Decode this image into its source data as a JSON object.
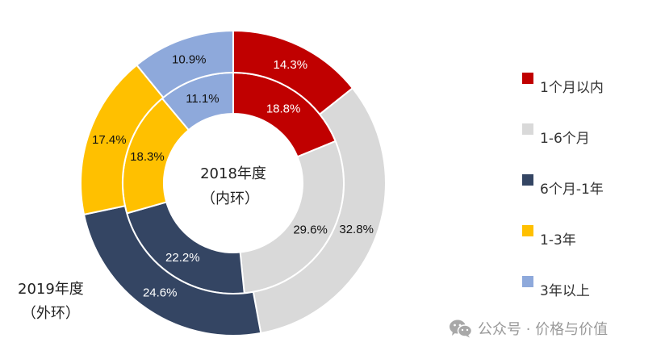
{
  "chart_data": {
    "type": "pie",
    "subtype": "nested-donut",
    "title": "",
    "categories": [
      "1个月以内",
      "1-6个月",
      "6个月-1年",
      "1-3年",
      "3年以上"
    ],
    "colors": [
      "#C00000",
      "#D9D9D9",
      "#344563",
      "#FFC000",
      "#8EA9DB"
    ],
    "series": [
      {
        "name": "2018年度（内环）",
        "ring": "inner",
        "values": [
          18.8,
          29.6,
          22.2,
          18.3,
          11.1
        ],
        "labels": [
          "18.8%",
          "29.6%",
          "22.2%",
          "18.3%",
          "11.1%"
        ]
      },
      {
        "name": "2019年度（外环）",
        "ring": "outer",
        "values": [
          14.3,
          32.8,
          24.6,
          17.4,
          10.9
        ],
        "labels": [
          "14.3%",
          "32.8%",
          "24.6%",
          "17.4%",
          "10.9%"
        ]
      }
    ],
    "label_colors": [
      "#FFFFFF",
      "#111111",
      "#FFFFFF",
      "#111111",
      "#111111"
    ],
    "legend_position": "right"
  },
  "center_label": {
    "line1": "2018年度",
    "line2": "（内环）"
  },
  "outer_caption": {
    "line1": "2019年度",
    "line2": "（外环）"
  },
  "legend": [
    {
      "label": "1个月以内",
      "color": "#C00000"
    },
    {
      "label": "1-6个月",
      "color": "#D9D9D9"
    },
    {
      "label": "6个月-1年",
      "color": "#344563"
    },
    {
      "label": "1-3年",
      "color": "#FFC000"
    },
    {
      "label": "3年以上",
      "color": "#8EA9DB"
    }
  ],
  "watermark": {
    "icon": "wechat-icon",
    "text": "公众号 · 价格与价值"
  }
}
